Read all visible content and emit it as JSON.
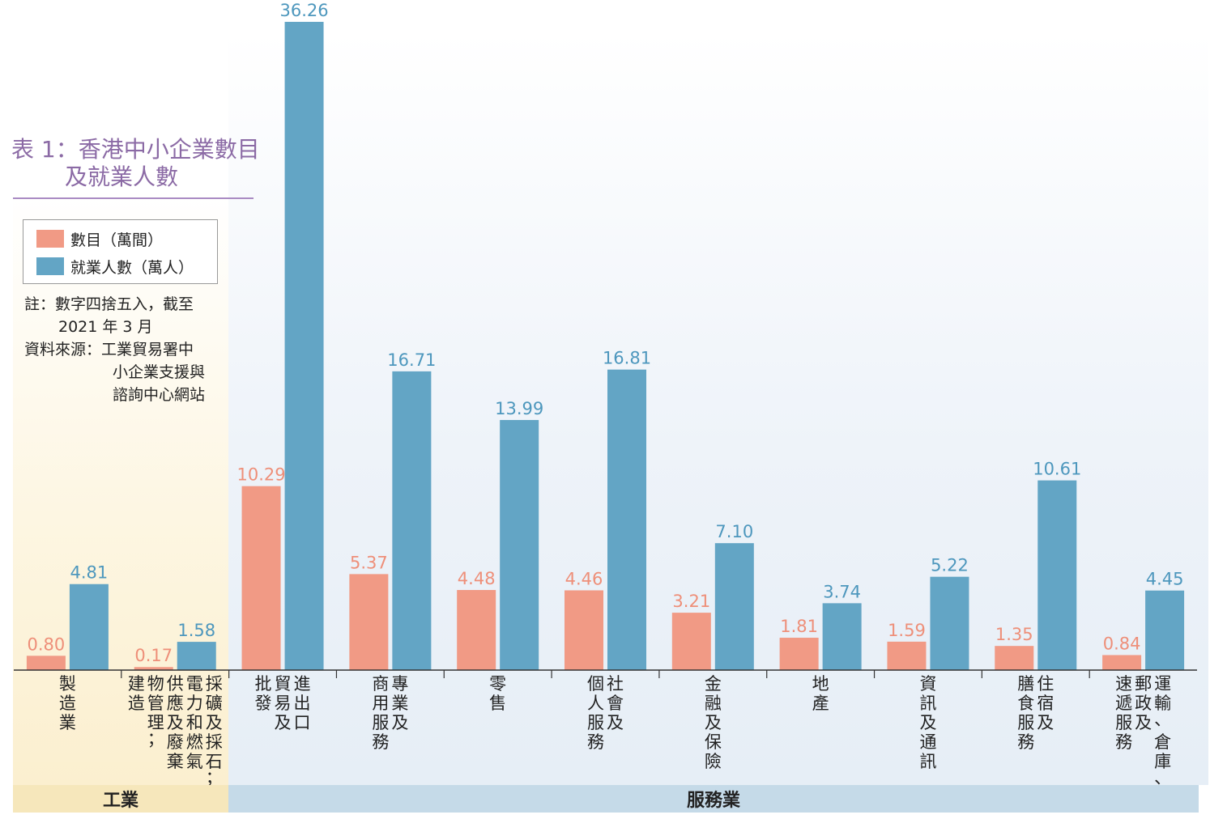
{
  "title": {
    "line1": "表 1：香港中小企業數目",
    "line2": "及就業人數"
  },
  "legend": {
    "establishments": "數目（萬間）",
    "employment": "就業人數（萬人）"
  },
  "note": {
    "line1": "註：數字四捨五入，截至",
    "line2": "2021 年 3 月",
    "line3": "資料來源：工業貿易署中",
    "line4": "小企業支援與",
    "line5": "諮詢中心網站"
  },
  "groups": {
    "industry": "工業",
    "services": "服務業"
  },
  "colors": {
    "establishments": "#f19a85",
    "employment": "#63a5c5"
  },
  "chart_data": {
    "type": "bar",
    "categories": [
      [
        "製造業"
      ],
      [
        "採礦及採石；",
        "電力和燃氣",
        "供應及廢棄",
        "物管理；",
        "建造"
      ],
      [
        "進出口",
        "貿易及",
        "批發"
      ],
      [
        "專業及",
        "商用服務"
      ],
      [
        "零售"
      ],
      [
        "社會及",
        "個人服務"
      ],
      [
        "金融及保險"
      ],
      [
        "地產"
      ],
      [
        "資訊及通訊"
      ],
      [
        "住宿及",
        "膳食服務"
      ],
      [
        "運輸、倉庫、",
        "郵政及",
        "速遞服務"
      ]
    ],
    "series": [
      {
        "name": "數目（萬間）",
        "values": [
          0.8,
          0.17,
          10.29,
          5.37,
          4.48,
          4.46,
          3.21,
          1.81,
          1.59,
          1.35,
          0.84
        ]
      },
      {
        "name": "就業人數（萬人）",
        "values": [
          4.81,
          1.58,
          36.26,
          16.71,
          13.99,
          16.81,
          7.1,
          3.74,
          5.22,
          10.61,
          4.45
        ]
      }
    ],
    "value_labels": {
      "establishments": [
        "0.80",
        "0.17",
        "10.29",
        "5.37",
        "4.48",
        "4.46",
        "3.21",
        "1.81",
        "1.59",
        "1.35",
        "0.84"
      ],
      "employment": [
        "4.81",
        "1.58",
        "36.26",
        "16.71",
        "13.99",
        "16.81",
        "7.10",
        "3.74",
        "5.22",
        "10.61",
        "4.45"
      ]
    },
    "group_spans": {
      "industry": [
        0,
        1
      ],
      "services": [
        2,
        10
      ]
    },
    "ylim": [
      0,
      36.26
    ],
    "grid": false,
    "legend_position": "left"
  }
}
